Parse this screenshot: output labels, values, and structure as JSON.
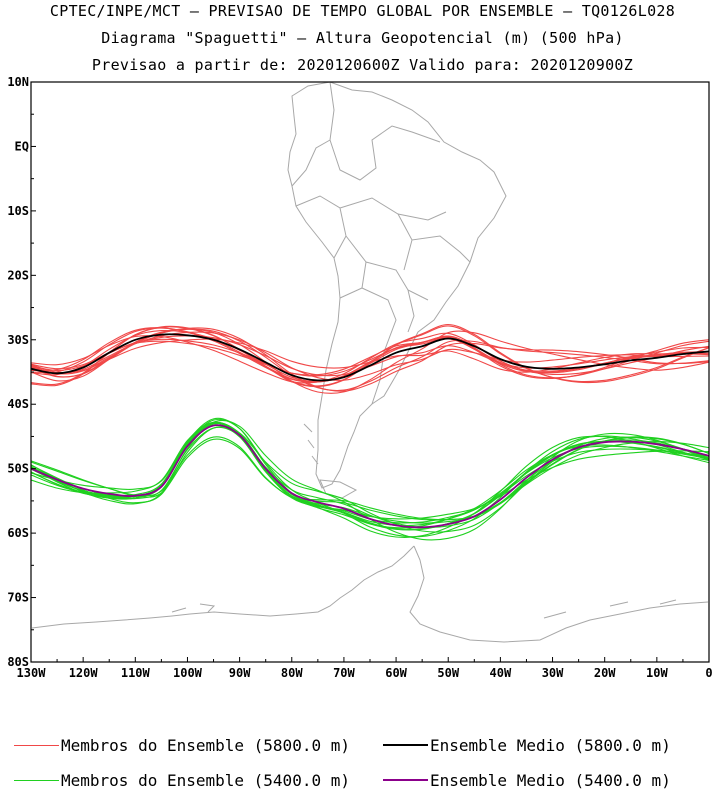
{
  "chart_data": {
    "type": "line",
    "title": "CPTEC/INPE/MCT — PREVISAO DE TEMPO GLOBAL POR ENSEMBLE — TQ0126L028",
    "subtitle": "Diagrama \"Spaguetti\" — Altura Geopotencial (m) (500 hPa)",
    "forecast_line": "Previsao a partir de: 2020120600Z   Valido para: 2020120900Z",
    "xlim": [
      -130,
      0
    ],
    "ylim": [
      -80,
      10
    ],
    "x_ticks": [
      {
        "value": -130,
        "label": "130W"
      },
      {
        "value": -120,
        "label": "120W"
      },
      {
        "value": -110,
        "label": "110W"
      },
      {
        "value": -100,
        "label": "100W"
      },
      {
        "value": -90,
        "label": "90W"
      },
      {
        "value": -80,
        "label": "80W"
      },
      {
        "value": -70,
        "label": "70W"
      },
      {
        "value": -60,
        "label": "60W"
      },
      {
        "value": -50,
        "label": "50W"
      },
      {
        "value": -40,
        "label": "40W"
      },
      {
        "value": -30,
        "label": "30W"
      },
      {
        "value": -20,
        "label": "20W"
      },
      {
        "value": -10,
        "label": "10W"
      },
      {
        "value": 0,
        "label": "0"
      }
    ],
    "y_ticks": [
      {
        "value": 10,
        "label": "10N"
      },
      {
        "value": 0,
        "label": "EQ"
      },
      {
        "value": -10,
        "label": "10S"
      },
      {
        "value": -20,
        "label": "20S"
      },
      {
        "value": -30,
        "label": "30S"
      },
      {
        "value": -40,
        "label": "40S"
      },
      {
        "value": -50,
        "label": "50S"
      },
      {
        "value": -60,
        "label": "60S"
      },
      {
        "value": -70,
        "label": "70S"
      },
      {
        "value": -80,
        "label": "80S"
      }
    ],
    "series": [
      {
        "name": "Ensemble Medio (5800.0 m)",
        "color": "#000000",
        "x": [
          -130,
          -125,
          -120,
          -115,
          -110,
          -105,
          -100,
          -95,
          -90,
          -85,
          -80,
          -75,
          -70,
          -65,
          -60,
          -55,
          -50,
          -45,
          -40,
          -35,
          -30,
          -25,
          -20,
          -15,
          -10,
          -5,
          0
        ],
        "y": [
          -34.5,
          -35.2,
          -34.3,
          -32.0,
          -30.0,
          -29.2,
          -29.3,
          -30.0,
          -31.5,
          -33.5,
          -35.5,
          -36.3,
          -35.8,
          -34.0,
          -32.0,
          -31.0,
          -29.8,
          -31.0,
          -33.0,
          -34.2,
          -34.5,
          -34.3,
          -33.8,
          -33.2,
          -32.8,
          -32.2,
          -31.8
        ]
      },
      {
        "name": "Ensemble Medio (5400.0 m)",
        "color": "#8b008b",
        "x": [
          -130,
          -125,
          -120,
          -115,
          -110,
          -105,
          -100,
          -95,
          -90,
          -85,
          -80,
          -75,
          -70,
          -65,
          -60,
          -55,
          -50,
          -45,
          -40,
          -35,
          -30,
          -25,
          -20,
          -15,
          -10,
          -5,
          0
        ],
        "y": [
          -50.0,
          -51.7,
          -53.1,
          -53.9,
          -54.2,
          -52.8,
          -46.5,
          -43.3,
          -44.8,
          -50.0,
          -53.8,
          -55.2,
          -56.2,
          -57.8,
          -58.8,
          -59.1,
          -58.6,
          -57.4,
          -54.8,
          -51.4,
          -48.6,
          -46.7,
          -45.9,
          -45.8,
          -46.2,
          -47.0,
          -48.0
        ]
      }
    ],
    "ensemble_members": [
      {
        "name": "Membros do Ensemble (5800.0 m)",
        "color": "#f04848",
        "count": 14,
        "spread_deg": 1.6
      },
      {
        "name": "Membros do Ensemble (5400.0 m)",
        "color": "#20d020",
        "count": 14,
        "spread_deg": 1.2
      }
    ],
    "background": "Mapa da America do Sul e Antartida (contornos cinza)"
  },
  "colors": {
    "map": "#a8a8a8",
    "member_5800": "#f04848",
    "member_5400": "#20d020",
    "mean_5800": "#000000",
    "mean_5400": "#8b008b"
  },
  "legend": [
    {
      "label": "Membros do Ensemble (5800.0 m)",
      "color": "#f04848"
    },
    {
      "label": "Ensemble Medio (5800.0 m)",
      "color": "#000000"
    },
    {
      "label": "Membros do Ensemble (5400.0 m)",
      "color": "#20d020"
    },
    {
      "label": "Ensemble Medio (5400.0 m)",
      "color": "#8b008b"
    }
  ]
}
